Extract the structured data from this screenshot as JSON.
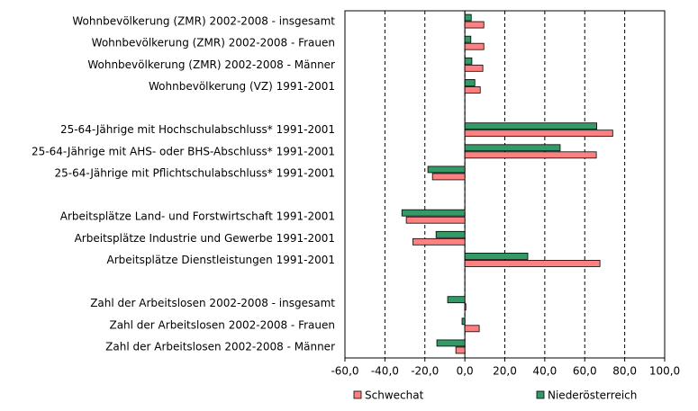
{
  "chart_data": {
    "type": "hbar",
    "categories": [
      "Wohnbevölkerung (ZMR) 2002-2008 - insgesamt",
      "Wohnbevölkerung (ZMR) 2002-2008 - Frauen",
      "Wohnbevölkerung (ZMR) 2002-2008 - Männer",
      "Wohnbevölkerung (VZ) 1991-2001",
      null,
      "25-64-Jährige mit Hochschulabschluss* 1991-2001",
      "25-64-Jährige mit AHS- oder BHS-Abschluss* 1991-2001",
      "25-64-Jährige mit Pflichtschulabschluss* 1991-2001",
      null,
      "Arbeitsplätze Land- und Forstwirtschaft 1991-2001",
      "Arbeitsplätze Industrie und Gewerbe 1991-2001",
      "Arbeitsplätze Dienstleistungen 1991-2001",
      null,
      "Zahl der Arbeitslosen 2002-2008 - insgesamt",
      "Zahl der Arbeitslosen 2002-2008 - Frauen",
      "Zahl der Arbeitslosen 2002-2008 - Männer"
    ],
    "series": [
      {
        "name": "Niederösterreich",
        "color": "#339966",
        "values": [
          3.2,
          3.0,
          3.5,
          5.0,
          null,
          66.0,
          47.7,
          -18.5,
          null,
          -31.5,
          -14.4,
          31.5,
          null,
          -8.6,
          -1.4,
          -14.0
        ]
      },
      {
        "name": "Schwechat",
        "color": "#ff8080",
        "values": [
          9.5,
          9.5,
          9.0,
          7.7,
          null,
          74.0,
          65.8,
          -16.2,
          null,
          -29.3,
          -26.0,
          67.6,
          null,
          0.5,
          7.2,
          -4.5
        ]
      }
    ],
    "xlim": [
      -60,
      100
    ],
    "xticks": [
      {
        "value": -60,
        "label": "-60,0"
      },
      {
        "value": -40,
        "label": "-40,0"
      },
      {
        "value": -20,
        "label": "-20,0"
      },
      {
        "value": 0,
        "label": "0,0"
      },
      {
        "value": 20,
        "label": "20,0"
      },
      {
        "value": 40,
        "label": "40,0"
      },
      {
        "value": 60,
        "label": "60,0"
      },
      {
        "value": 80,
        "label": "80,0"
      },
      {
        "value": 100,
        "label": "100,0"
      }
    ],
    "grid": true
  }
}
